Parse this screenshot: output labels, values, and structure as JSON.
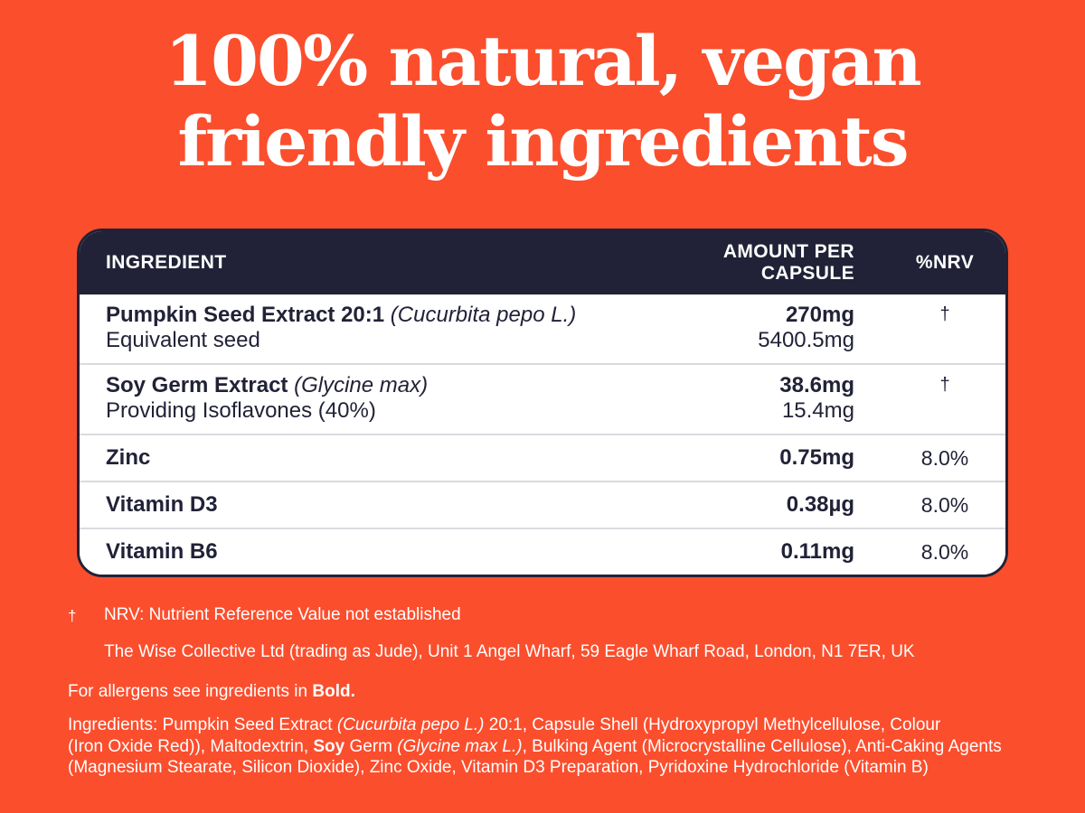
{
  "colors": {
    "background": "#FB4E2D",
    "navy": "#212237",
    "white": "#FFFFFF",
    "row_separator": "#DADADF"
  },
  "headline": {
    "line1": "100% natural, vegan",
    "line2": "friendly ingredients"
  },
  "table": {
    "headers": {
      "ingredient": "INGREDIENT",
      "amount": "AMOUNT PER\nCAPSULE",
      "nrv": "%NRV"
    },
    "rows": [
      {
        "name": [
          {
            "t": "Pumpkin Seed Extract 20:1 ",
            "s": "b"
          },
          {
            "t": "(Cucurbita pepo L.)",
            "s": "i"
          }
        ],
        "sub": "Equivalent seed",
        "amount": "270mg",
        "amount_sub": "5400.5mg",
        "nrv": "†"
      },
      {
        "name": [
          {
            "t": "Soy Germ Extract ",
            "s": "b"
          },
          {
            "t": "(Glycine max)",
            "s": "i"
          }
        ],
        "sub": "Providing Isoflavones (40%)",
        "amount": "38.6mg",
        "amount_sub": "15.4mg",
        "nrv": "†"
      },
      {
        "name": [
          {
            "t": "Zinc",
            "s": "b"
          }
        ],
        "sub": "",
        "amount": "0.75mg",
        "amount_sub": "",
        "nrv": "8.0%"
      },
      {
        "name": [
          {
            "t": "Vitamin D3",
            "s": "b"
          }
        ],
        "sub": "",
        "amount": "0.38µg",
        "amount_sub": "",
        "nrv": "8.0%"
      },
      {
        "name": [
          {
            "t": "Vitamin B6",
            "s": "b"
          }
        ],
        "sub": "",
        "amount": "0.11mg",
        "amount_sub": "",
        "nrv": "8.0%"
      }
    ]
  },
  "footnotes": {
    "dagger": "†",
    "nrv_note": "NRV: Nutrient Reference Value not established",
    "address": "The Wise Collective Ltd (trading as Jude), Unit 1 Angel Wharf, 59 Eagle Wharf Road, London, N1 7ER, UK"
  },
  "allergens": [
    {
      "t": "For allergens see ingredients in "
    },
    {
      "t": "Bold.",
      "s": "b"
    }
  ],
  "ingredients_list": [
    {
      "t": "Ingredients: Pumpkin Seed Extract "
    },
    {
      "t": "(Cucurbita pepo L.)",
      "s": "i"
    },
    {
      "t": " 20:1, Capsule Shell (Hydroxypropyl Methylcellulose, Colour\n(Iron Oxide Red)), Maltodextrin, "
    },
    {
      "t": "Soy",
      "s": "b"
    },
    {
      "t": " Germ "
    },
    {
      "t": "(Glycine max L.)",
      "s": "i"
    },
    {
      "t": ", Bulking Agent (Microcrystalline Cellulose), Anti-Caking Agents\n(Magnesium Stearate, Silicon Dioxide), Zinc Oxide, Vitamin D3 Preparation, Pyridoxine Hydrochloride (Vitamin B)"
    }
  ]
}
